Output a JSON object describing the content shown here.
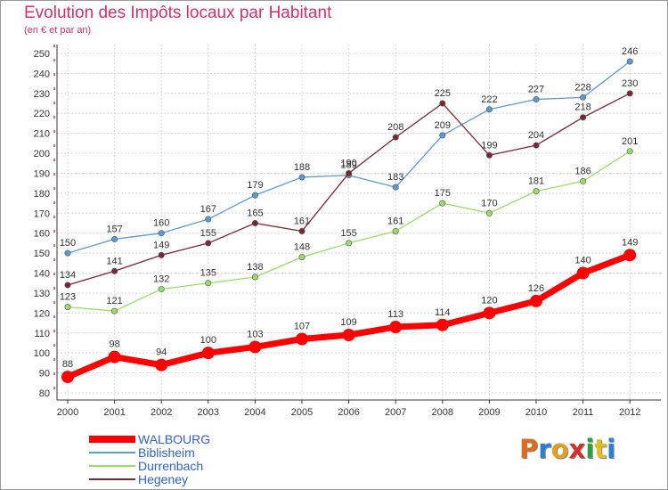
{
  "title": "Evolution des Impôts locaux par Habitant",
  "subtitle": "(en € et par an)",
  "logo": "Proxiti",
  "logo_colors": [
    "#e06a1e",
    "#2a7fd4",
    "#e0a020",
    "#d43030",
    "#2aa040",
    "#e0c020",
    "#2a7fd4"
  ],
  "chart_data": {
    "type": "line",
    "x": [
      "2000",
      "2001",
      "2002",
      "2003",
      "2004",
      "2005",
      "2006",
      "2007",
      "2008",
      "2009",
      "2010",
      "2011",
      "2012"
    ],
    "ylim": [
      80,
      250
    ],
    "yticks": [
      80,
      90,
      100,
      110,
      120,
      130,
      140,
      150,
      160,
      170,
      180,
      190,
      200,
      210,
      220,
      230,
      240,
      250
    ],
    "grid": true,
    "legend_position": "bottom-left",
    "series": [
      {
        "name": "Biblisheim",
        "color": "#5b9bd5",
        "values": [
          150,
          157,
          160,
          167,
          179,
          188,
          189,
          183,
          209,
          222,
          227,
          228,
          246
        ]
      },
      {
        "name": "Hegeney",
        "color": "#7b2630",
        "values": [
          134,
          141,
          149,
          155,
          165,
          161,
          190,
          208,
          225,
          199,
          204,
          218,
          230
        ]
      },
      {
        "name": "Durrenbach",
        "color": "#99dd66",
        "values": [
          123,
          121,
          132,
          135,
          138,
          148,
          155,
          161,
          175,
          170,
          181,
          186,
          201
        ]
      },
      {
        "name": "WALBOURG",
        "color": "#ff0000",
        "values": [
          88,
          98,
          94,
          100,
          103,
          107,
          109,
          113,
          114,
          120,
          126,
          140,
          149
        ]
      }
    ],
    "legend_order": [
      "WALBOURG",
      "Biblisheim",
      "Durrenbach",
      "Hegeney"
    ]
  }
}
